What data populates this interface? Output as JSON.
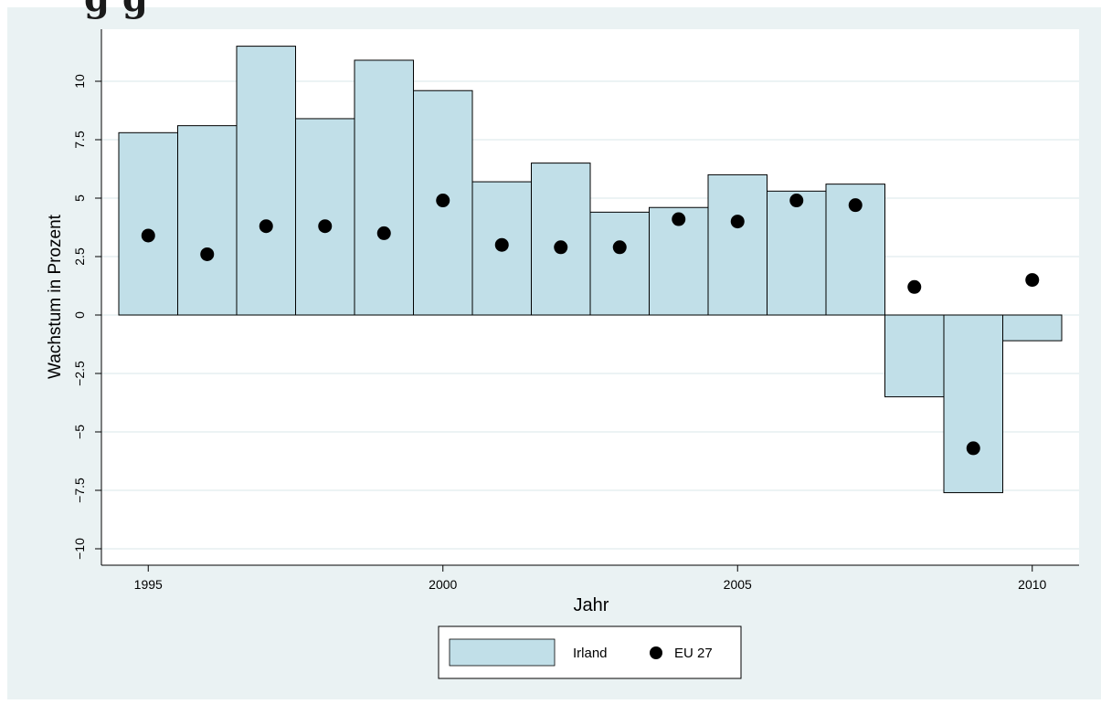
{
  "page": {
    "title_fragment": "g      g"
  },
  "chart_data": {
    "type": "bar",
    "x": [
      1995,
      1996,
      1997,
      1998,
      1999,
      2000,
      2001,
      2002,
      2003,
      2004,
      2005,
      2006,
      2007,
      2008,
      2009,
      2010
    ],
    "series": [
      {
        "name": "Irland",
        "kind": "bar",
        "color": "#c1dfe8",
        "values": [
          7.8,
          8.1,
          11.5,
          8.4,
          10.9,
          9.6,
          5.7,
          6.5,
          4.4,
          4.6,
          6.0,
          5.3,
          5.6,
          -3.5,
          -7.6,
          -1.1
        ]
      },
      {
        "name": "EU 27",
        "kind": "scatter",
        "color": "#000000",
        "values": [
          3.4,
          2.6,
          3.8,
          3.8,
          3.5,
          4.9,
          3.0,
          2.9,
          2.9,
          4.1,
          4.0,
          4.9,
          4.7,
          1.2,
          -5.7,
          1.5
        ]
      }
    ],
    "xlabel": "Jahr",
    "ylabel": "Wachstum in Prozent",
    "xticks": [
      "1995",
      "2000",
      "2005",
      "2010"
    ],
    "yticks": [
      "−10",
      "−7.5",
      "−5",
      "−2.5",
      "0",
      "2.5",
      "5",
      "7.5",
      "10"
    ],
    "ylim": [
      -10.5,
      12
    ],
    "xlim": [
      1994.5,
      2010.5
    ],
    "grid": true,
    "legend_position": "bottom",
    "colors": {
      "background": "#eaf2f3",
      "plot_background": "#ffffff",
      "grid": "#e6eff1"
    }
  }
}
